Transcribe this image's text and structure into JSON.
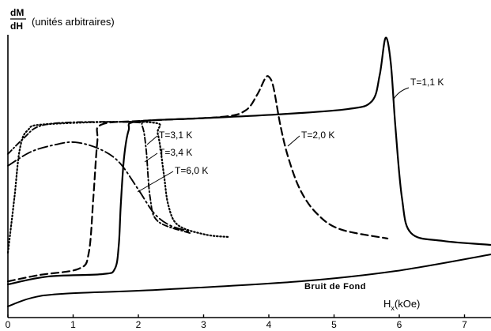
{
  "chart_data": {
    "type": "line",
    "ylabel": {
      "numerator": "dM",
      "denominator": "dH",
      "unit": "(unités arbitraires)"
    },
    "xlabel": {
      "symbol": "H",
      "subscript": "x",
      "unit": "(kOe)"
    },
    "x_ticks": [
      "0",
      "1",
      "2",
      "3",
      "4",
      "5",
      "6",
      "7"
    ],
    "xlim": [
      0,
      7.4
    ],
    "ylim": [
      0,
      100
    ],
    "grid": false,
    "series": [
      {
        "name": "T=1,1 K",
        "x": [
          0,
          0.61,
          1.45,
          1.64,
          1.7,
          1.73,
          1.78,
          1.85,
          1.96,
          2.91,
          4.12,
          5.21,
          5.58,
          5.7,
          5.79,
          5.87,
          5.94,
          6.04,
          6.18,
          6.67,
          7.4
        ],
        "y": [
          11.0,
          13.6,
          14.4,
          16.2,
          24.1,
          37.2,
          52.9,
          62.0,
          64.9,
          66.0,
          67.3,
          69.1,
          71.7,
          80.4,
          92.7,
          84.3,
          63.4,
          39.8,
          28.0,
          25.4,
          24.1
        ]
      },
      {
        "name": "T=2,0 K",
        "x": [
          0,
          0.48,
          1.09,
          1.24,
          1.31,
          1.37,
          1.43,
          2.06,
          3.27,
          3.64,
          3.82,
          3.94,
          4.0,
          4.07,
          4.18,
          4.3,
          4.48,
          4.73,
          5.09,
          5.82
        ],
        "y": [
          12.0,
          14.1,
          16.2,
          21.5,
          39.8,
          58.1,
          63.9,
          65.2,
          66.5,
          68.6,
          73.8,
          79.1,
          79.8,
          76.4,
          63.4,
          52.9,
          42.4,
          34.6,
          29.3,
          26.2
        ]
      },
      {
        "name": "T=3,1 K",
        "x": [
          0,
          0.24,
          0.48,
          0.97,
          1.94,
          2.06,
          2.12,
          2.18,
          2.3,
          2.79
        ],
        "y": [
          54.2,
          59.4,
          63.4,
          64.7,
          64.7,
          63.4,
          55.5,
          39.8,
          31.9,
          28.0
        ]
      },
      {
        "name": "T=3,4 K",
        "x": [
          0,
          0.1,
          0.18,
          0.3,
          0.61,
          2.18,
          2.3,
          2.39,
          2.46,
          2.61,
          3.03,
          3.39
        ],
        "y": [
          21.5,
          39.8,
          55.5,
          62.0,
          64.1,
          64.7,
          60.7,
          47.6,
          37.2,
          30.6,
          27.5,
          26.7
        ]
      },
      {
        "name": "T=6,0 K",
        "x": [
          0,
          0.36,
          0.73,
          1.03,
          1.39,
          1.7,
          2.0,
          2.24,
          2.48,
          2.79
        ],
        "y": [
          50.3,
          55.0,
          57.3,
          58.1,
          56.0,
          51.6,
          42.4,
          34.6,
          30.6,
          28.5
        ]
      },
      {
        "name": "Bruit de Fond",
        "x": [
          0,
          0.36,
          0.85,
          2.3,
          4.48,
          5.94,
          7.4
        ],
        "y": [
          3.7,
          6.5,
          7.9,
          9.2,
          12.0,
          15.4,
          20.9
        ]
      }
    ]
  }
}
